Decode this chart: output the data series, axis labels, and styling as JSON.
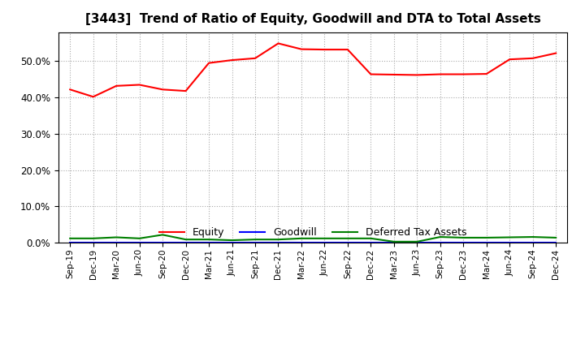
{
  "title": "[3443]  Trend of Ratio of Equity, Goodwill and DTA to Total Assets",
  "x_labels": [
    "Sep-19",
    "Dec-19",
    "Mar-20",
    "Jun-20",
    "Sep-20",
    "Dec-20",
    "Mar-21",
    "Jun-21",
    "Sep-21",
    "Dec-21",
    "Mar-22",
    "Jun-22",
    "Sep-22",
    "Dec-22",
    "Mar-23",
    "Jun-23",
    "Sep-23",
    "Dec-23",
    "Mar-24",
    "Jun-24",
    "Sep-24",
    "Dec-24"
  ],
  "equity": [
    0.422,
    0.402,
    0.432,
    0.435,
    0.422,
    0.418,
    0.495,
    0.503,
    0.508,
    0.549,
    0.533,
    0.532,
    0.532,
    0.464,
    0.463,
    0.462,
    0.464,
    0.464,
    0.465,
    0.505,
    0.508,
    0.522
  ],
  "goodwill": [
    0.0,
    0.0,
    0.0,
    0.0,
    0.0,
    0.0,
    0.0,
    0.0,
    0.0,
    0.0,
    0.0,
    0.0,
    0.0,
    0.0,
    0.0,
    0.0,
    0.0,
    0.0,
    0.0,
    0.0,
    0.0,
    0.0
  ],
  "dta": [
    0.012,
    0.012,
    0.015,
    0.012,
    0.022,
    0.009,
    0.009,
    0.007,
    0.009,
    0.009,
    0.012,
    0.012,
    0.012,
    0.012,
    0.003,
    0.003,
    0.016,
    0.014,
    0.014,
    0.015,
    0.016,
    0.014
  ],
  "equity_color": "#ff0000",
  "goodwill_color": "#0000ff",
  "dta_color": "#008000",
  "bg_color": "#ffffff",
  "plot_bg_color": "#ffffff",
  "grid_color": "#aaaaaa",
  "ylim": [
    0.0,
    0.58
  ],
  "yticks": [
    0.0,
    0.1,
    0.2,
    0.3,
    0.4,
    0.5
  ],
  "title_fontsize": 11,
  "legend_labels": [
    "Equity",
    "Goodwill",
    "Deferred Tax Assets"
  ]
}
